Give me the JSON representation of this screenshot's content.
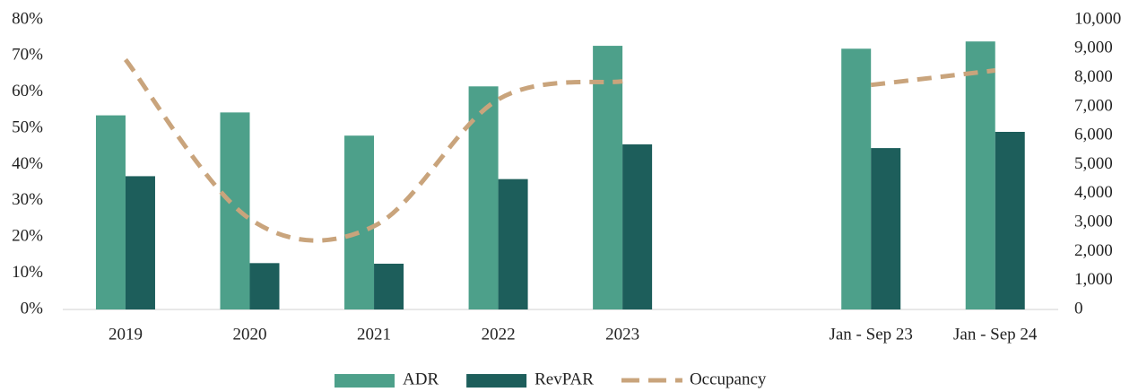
{
  "chart_data": {
    "type": "bar",
    "categories": [
      "2019",
      "2020",
      "2021",
      "2022",
      "2023",
      null,
      "Jan - Sep 23",
      "Jan - Sep 24"
    ],
    "series": [
      {
        "name": "ADR",
        "type": "bar",
        "color": "#4da08a",
        "axis": "y2",
        "values": [
          6700,
          6800,
          6000,
          7700,
          9100,
          null,
          9000,
          9250
        ]
      },
      {
        "name": "RevPAR",
        "type": "bar",
        "color": "#1d5e5b",
        "axis": "y2",
        "values": [
          4600,
          1600,
          1580,
          4500,
          5700,
          null,
          5570,
          6130
        ]
      },
      {
        "name": "Occupancy",
        "type": "line",
        "color": "#c9a47c",
        "dashed": true,
        "smooth": true,
        "values": [
          69,
          25,
          23,
          58,
          63,
          null,
          62,
          66
        ]
      }
    ],
    "ylim": [
      0,
      80
    ],
    "yticks": [
      {
        "value": 0,
        "label": "0%"
      },
      {
        "value": 10,
        "label": "10%"
      },
      {
        "value": 20,
        "label": "20%"
      },
      {
        "value": 30,
        "label": "30%"
      },
      {
        "value": 40,
        "label": "40%"
      },
      {
        "value": 50,
        "label": "50%"
      },
      {
        "value": 60,
        "label": "60%"
      },
      {
        "value": 70,
        "label": "70%"
      },
      {
        "value": 80,
        "label": "80%"
      }
    ],
    "y2lim": [
      0,
      10000
    ],
    "y2ticks": [
      0,
      {
        "value": 1000,
        "label": "1,000"
      },
      {
        "value": 2000,
        "label": "2,000"
      },
      {
        "value": 3000,
        "label": "3,000"
      },
      {
        "value": 4000,
        "label": "4,000"
      },
      {
        "value": 5000,
        "label": "5,000"
      },
      {
        "value": 6000,
        "label": "6,000"
      },
      {
        "value": 7000,
        "label": "7,000"
      },
      {
        "value": 8000,
        "label": "8,000"
      },
      {
        "value": 9000,
        "label": "9,000"
      },
      {
        "value": 10000,
        "label": "10,000"
      }
    ],
    "grid": false,
    "legend": "bottom"
  }
}
